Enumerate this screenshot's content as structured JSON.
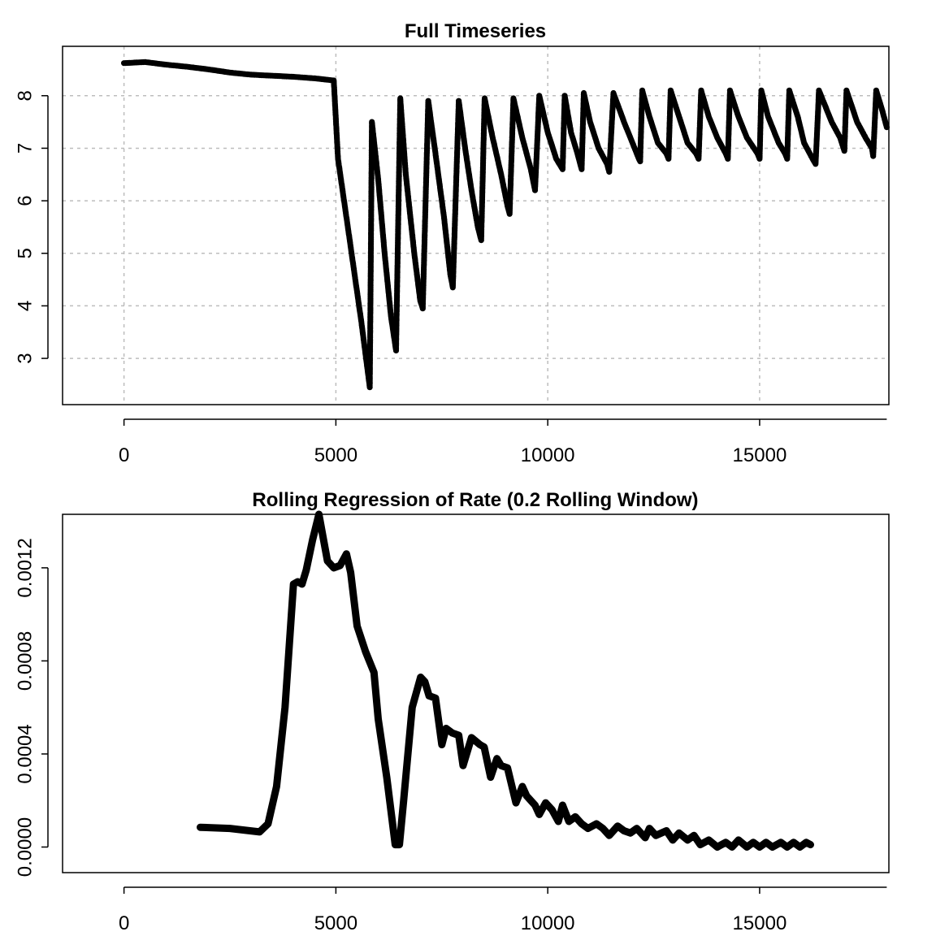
{
  "chart_data": [
    {
      "type": "scatter",
      "title": "Full Timeseries",
      "xlabel": "",
      "ylabel": "",
      "xlim": [
        -1450,
        18050
      ],
      "ylim": [
        2.12,
        8.94
      ],
      "x_ticks": [
        0,
        5000,
        10000,
        15000
      ],
      "y_ticks": [
        3,
        4,
        5,
        6,
        7,
        8
      ],
      "grid": true,
      "series": [
        {
          "x": [
            0,
            500,
            1000,
            1500,
            2000,
            2500,
            3000,
            3500,
            4000,
            4500,
            4950,
            5050,
            5300,
            5600,
            5800,
            5850,
            6000,
            6150,
            6300,
            6420,
            6520,
            6650,
            6850,
            6990,
            7050,
            7180,
            7350,
            7550,
            7700,
            7760,
            7900,
            8050,
            8200,
            8350,
            8430,
            8510,
            8700,
            8900,
            9050,
            9100,
            9190,
            9400,
            9600,
            9700,
            9800,
            10000,
            10200,
            10350,
            10400,
            10550,
            10700,
            10800,
            10850,
            11000,
            11200,
            11400,
            11450,
            11550,
            11800,
            12000,
            12150,
            12180,
            12230,
            12400,
            12600,
            12800,
            12850,
            12900,
            13100,
            13300,
            13500,
            13560,
            13620,
            13800,
            14000,
            14200,
            14250,
            14300,
            14500,
            14700,
            14950,
            15000,
            15040,
            15200,
            15450,
            15600,
            15650,
            15700,
            15900,
            16050,
            16250,
            16320,
            16400,
            16700,
            16900,
            17000,
            17050,
            17300,
            17500,
            17650,
            17680,
            17750,
            17900,
            18000
          ],
          "y": [
            8.62,
            8.64,
            8.59,
            8.55,
            8.5,
            8.44,
            8.4,
            8.38,
            8.36,
            8.33,
            8.29,
            6.8,
            5.4,
            3.7,
            2.45,
            7.5,
            6.4,
            5.0,
            3.8,
            3.15,
            7.95,
            6.5,
            5.0,
            4.1,
            3.95,
            7.9,
            6.9,
            5.7,
            4.6,
            4.35,
            7.9,
            7.0,
            6.2,
            5.5,
            5.25,
            7.95,
            7.2,
            6.5,
            5.9,
            5.75,
            7.95,
            7.2,
            6.6,
            6.2,
            8.0,
            7.3,
            6.8,
            6.6,
            8.0,
            7.3,
            6.9,
            6.6,
            8.05,
            7.5,
            7.0,
            6.7,
            6.55,
            8.05,
            7.5,
            7.1,
            6.8,
            6.75,
            8.1,
            7.6,
            7.1,
            6.9,
            6.8,
            8.1,
            7.6,
            7.1,
            6.9,
            6.8,
            8.1,
            7.6,
            7.2,
            6.9,
            6.8,
            8.1,
            7.6,
            7.2,
            6.9,
            6.8,
            8.1,
            7.6,
            7.1,
            6.9,
            6.8,
            8.1,
            7.6,
            7.1,
            6.8,
            6.7,
            8.1,
            7.5,
            7.2,
            6.95,
            8.1,
            7.5,
            7.2,
            7.0,
            6.85,
            8.1,
            7.7,
            7.4
          ]
        }
      ]
    },
    {
      "type": "line",
      "title": "Rolling Regression of Rate (0.2 Rolling Window)",
      "xlabel": "",
      "ylabel": "",
      "xlim": [
        -1450,
        18050
      ],
      "ylim": [
        -0.00011,
        0.00143
      ],
      "x_ticks": [
        0,
        5000,
        10000,
        15000
      ],
      "y_ticks": [
        0.0,
        0.0004,
        0.0008,
        0.0012
      ],
      "y_tick_labels": [
        "0.0000",
        "0.0004",
        "0.0008",
        "0.0012"
      ],
      "grid": false,
      "series": [
        {
          "x": [
            1800,
            2500,
            3200,
            3400,
            3600,
            3800,
            4000,
            4100,
            4200,
            4300,
            4450,
            4600,
            4700,
            4800,
            4950,
            5100,
            5250,
            5350,
            5500,
            5700,
            5900,
            6000,
            6200,
            6400,
            6500,
            6600,
            6800,
            7000,
            7100,
            7200,
            7350,
            7500,
            7600,
            7750,
            7900,
            8000,
            8200,
            8400,
            8500,
            8650,
            8800,
            8900,
            9050,
            9250,
            9400,
            9500,
            9700,
            9800,
            9950,
            10100,
            10250,
            10350,
            10500,
            10650,
            10800,
            10950,
            11150,
            11300,
            11450,
            11650,
            11800,
            11950,
            12100,
            12300,
            12400,
            12550,
            12800,
            12950,
            13100,
            13300,
            13450,
            13600,
            13800,
            14000,
            14200,
            14350,
            14500,
            14700,
            14850,
            15000,
            15150,
            15300,
            15500,
            15650,
            15800,
            15950,
            16100,
            16200
          ],
          "y": [
            8.5e-05,
            8e-05,
            6.5e-05,
            0.0001,
            0.00026,
            0.0006,
            0.00113,
            0.00114,
            0.00113,
            0.00119,
            0.00132,
            0.00143,
            0.00133,
            0.00123,
            0.0012,
            0.00121,
            0.00126,
            0.00118,
            0.00095,
            0.00084,
            0.00075,
            0.00055,
            0.0003,
            1e-05,
            1e-05,
            0.0002,
            0.0006,
            0.00073,
            0.00071,
            0.00065,
            0.00064,
            0.00044,
            0.00051,
            0.00049,
            0.00048,
            0.00035,
            0.00047,
            0.00044,
            0.00043,
            0.0003,
            0.00038,
            0.00035,
            0.00034,
            0.00019,
            0.00026,
            0.00022,
            0.00018,
            0.00014,
            0.00019,
            0.00016,
            0.00011,
            0.00018,
            0.00011,
            0.00013,
            0.0001,
            8e-05,
            0.0001,
            8e-05,
            5e-05,
            9e-05,
            7e-05,
            6e-05,
            8e-05,
            4e-05,
            8e-05,
            5e-05,
            7e-05,
            3e-05,
            6e-05,
            3e-05,
            5e-05,
            1e-05,
            3e-05,
            0.0,
            2e-05,
            0.0,
            3e-05,
            0.0,
            2e-05,
            0.0,
            2e-05,
            0.0,
            2e-05,
            0.0,
            2e-05,
            0.0,
            2e-05,
            1e-05
          ]
        }
      ]
    }
  ]
}
